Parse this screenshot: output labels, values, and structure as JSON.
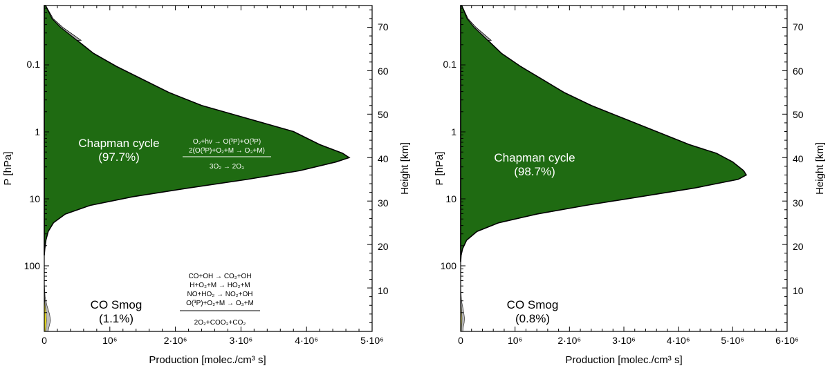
{
  "chart_data": [
    {
      "type": "area",
      "title": "",
      "xlabel": "Production [molec./cm³ s]",
      "ylabel": "P [hPa]",
      "ylabel_right": "Height [km]",
      "xlim": [
        0,
        5000000
      ],
      "p_ticks": [
        "0.1",
        "1",
        "10",
        "100"
      ],
      "height_ticks": [
        "10",
        "20",
        "30",
        "40",
        "50",
        "60",
        "70"
      ],
      "x_ticks": [
        "0",
        "10⁶",
        "2·10⁶",
        "3·10⁶",
        "4·10⁶",
        "5·10⁶"
      ],
      "series": [
        {
          "name": "Chapman cycle",
          "label": "Chapman cycle",
          "percent": "(97.7%)",
          "color": "#1f6b12",
          "reactions": [
            "O₂+hv → O(³P)+O(³P)",
            "2(O(³P)+O₂+M → O₃+M)"
          ],
          "net": "3O₂ → 2O₃",
          "profile": [
            [
              75,
              20000
            ],
            [
              72,
              120000
            ],
            [
              70,
              250000
            ],
            [
              67,
              500000
            ],
            [
              64,
              750000
            ],
            [
              61,
              1100000
            ],
            [
              58,
              1500000
            ],
            [
              55,
              1900000
            ],
            [
              52,
              2400000
            ],
            [
              49,
              3100000
            ],
            [
              46,
              3800000
            ],
            [
              43,
              4200000
            ],
            [
              41,
              4550000
            ],
            [
              40,
              4650000
            ],
            [
              39,
              4450000
            ],
            [
              37,
              3900000
            ],
            [
              35,
              3100000
            ],
            [
              33,
              2200000
            ],
            [
              31,
              1350000
            ],
            [
              29,
              700000
            ],
            [
              27,
              320000
            ],
            [
              25,
              140000
            ],
            [
              23,
              60000
            ],
            [
              21,
              25000
            ],
            [
              19,
              8000
            ],
            [
              17.5,
              0
            ]
          ]
        },
        {
          "name": "CO Smog",
          "label": "CO Smog",
          "percent": "(1.1%)",
          "color": "#f5e614",
          "reactions": [
            "CO+OH → CO₂+OH",
            "H+O₂+M → HO₂+M",
            "NO+HO₂ → NO₂+OH",
            "O(³P)+O₂+M → O₃+M"
          ],
          "net": "2O₂+COO₃+CO₂",
          "profile": [
            [
              11,
              0
            ],
            [
              8,
              8000
            ],
            [
              6,
              25000
            ],
            [
              4,
              50000
            ],
            [
              2.5,
              60000
            ],
            [
              1,
              45000
            ],
            [
              0,
              35000
            ]
          ]
        }
      ]
    },
    {
      "type": "area",
      "title": "",
      "xlabel": "Production [molec./cm³ s]",
      "ylabel": "P [hPa]",
      "ylabel_right": "Height [km]",
      "xlim": [
        0,
        6000000
      ],
      "p_ticks": [
        "0.1",
        "1",
        "10",
        "100"
      ],
      "height_ticks": [
        "10",
        "20",
        "30",
        "40",
        "50",
        "60",
        "70"
      ],
      "x_ticks": [
        "0",
        "10⁶",
        "2·10⁶",
        "3·10⁶",
        "4·10⁶",
        "5·10⁶",
        "6·10⁶"
      ],
      "series": [
        {
          "name": "Chapman cycle",
          "label": "Chapman cycle",
          "percent": "(98.7%)",
          "color": "#1f6b12",
          "profile": [
            [
              75,
              20000
            ],
            [
              72,
              120000
            ],
            [
              70,
              250000
            ],
            [
              67,
              500000
            ],
            [
              64,
              750000
            ],
            [
              61,
              1100000
            ],
            [
              58,
              1500000
            ],
            [
              55,
              1900000
            ],
            [
              52,
              2400000
            ],
            [
              49,
              3000000
            ],
            [
              46,
              3600000
            ],
            [
              43,
              4200000
            ],
            [
              41,
              4700000
            ],
            [
              39,
              5000000
            ],
            [
              37,
              5200000
            ],
            [
              36,
              5250000
            ],
            [
              35,
              5100000
            ],
            [
              33,
              4300000
            ],
            [
              31,
              3300000
            ],
            [
              29,
              2300000
            ],
            [
              27,
              1400000
            ],
            [
              25,
              700000
            ],
            [
              23,
              300000
            ],
            [
              21,
              110000
            ],
            [
              19,
              35000
            ],
            [
              17.5,
              8000
            ],
            [
              16,
              0
            ]
          ]
        },
        {
          "name": "CO Smog",
          "label": "CO Smog",
          "percent": "(0.8%)",
          "color": "#d8cf55",
          "profile": [
            [
              10,
              0
            ],
            [
              7,
              10000
            ],
            [
              5,
              30000
            ],
            [
              3,
              45000
            ],
            [
              2,
              40000
            ],
            [
              1,
              30000
            ],
            [
              0,
              25000
            ]
          ]
        }
      ]
    }
  ]
}
